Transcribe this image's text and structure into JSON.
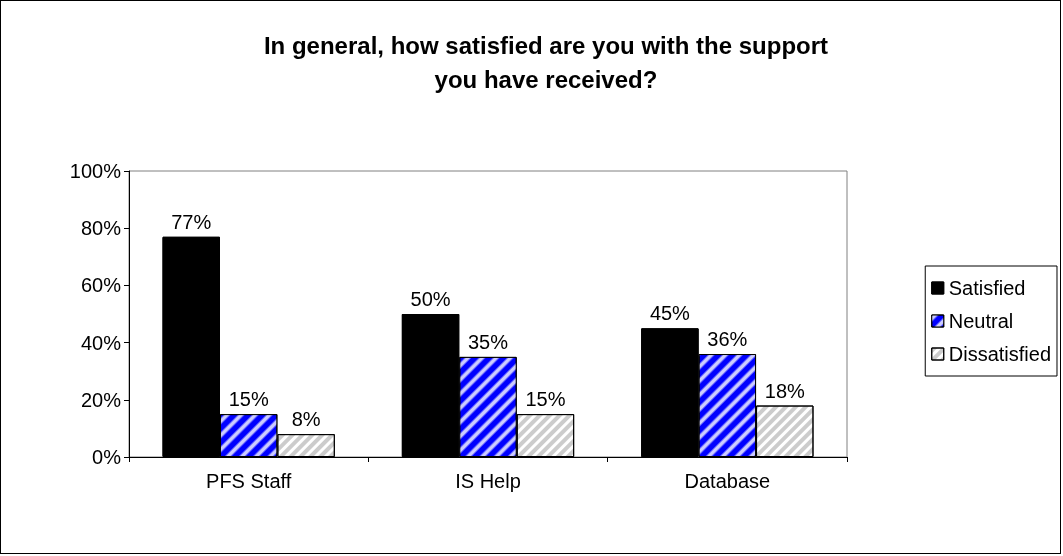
{
  "chart_data": {
    "type": "bar",
    "title": "In general, how satisfied are you with the support\nyou have received?",
    "categories": [
      "PFS Staff",
      "IS Help",
      "Database"
    ],
    "series": [
      {
        "name": "Satisfied",
        "color": "#000000",
        "values": [
          77,
          50,
          45
        ],
        "value_labels": [
          "77%",
          "50%",
          "45%"
        ]
      },
      {
        "name": "Neutral",
        "color": "#0000ff",
        "values": [
          15,
          35,
          36
        ],
        "value_labels": [
          "15%",
          "35%",
          "36%"
        ]
      },
      {
        "name": "Dissatisfied",
        "color": "#ffffff",
        "values": [
          8,
          15,
          18
        ],
        "value_labels": [
          "8%",
          "15%",
          "18%"
        ]
      }
    ],
    "ylim": [
      0,
      100
    ],
    "yticks": [
      {
        "value": 0,
        "label": "0%"
      },
      {
        "value": 20,
        "label": "20%"
      },
      {
        "value": 40,
        "label": "40%"
      },
      {
        "value": 60,
        "label": "60%"
      },
      {
        "value": 80,
        "label": "80%"
      },
      {
        "value": 100,
        "label": "100%"
      }
    ],
    "grid": false,
    "legend": "right"
  }
}
